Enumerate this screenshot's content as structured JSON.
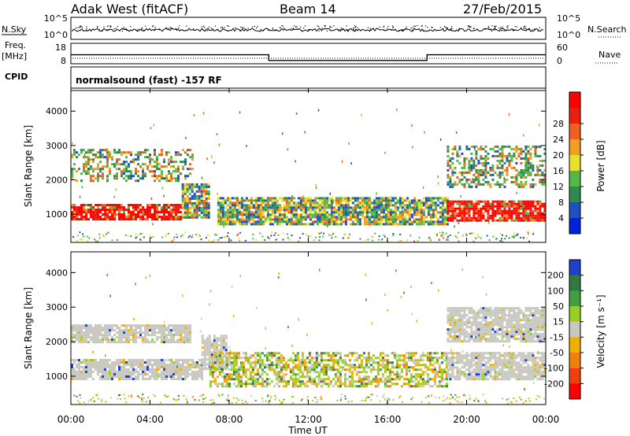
{
  "header": {
    "station": "Adak West (fitACF)",
    "beam": "Beam 14",
    "date": "27/Feb/2015"
  },
  "side_labels": {
    "nsky": "N.Sky",
    "freq_top": "Freq.",
    "freq_unit": "[MHz]",
    "cpid": "CPID",
    "nsearch": "N.Search",
    "nave": "Nave"
  },
  "noise_panel": {
    "left_ticks": [
      "10^5",
      "10^0"
    ],
    "right_ticks": [
      "10^5",
      "10^0"
    ]
  },
  "freq_panel": {
    "left_ticks": [
      "18",
      "8"
    ],
    "right_ticks": [
      "60",
      "0"
    ],
    "freq_segments": [
      {
        "t0": 0,
        "t1": 10,
        "value_mhz": 12.4
      },
      {
        "t0": 10,
        "t1": 18,
        "value_mhz": 9.6
      },
      {
        "t0": 18,
        "t1": 24,
        "value_mhz": 12.4
      }
    ]
  },
  "cpid_panel": {
    "label": "normalsound (fast) -157 RF"
  },
  "x_axis": {
    "ticks": [
      "00:00",
      "04:00",
      "08:00",
      "12:00",
      "16:00",
      "20:00",
      "00:00"
    ],
    "label": "Time UT"
  },
  "colors": {
    "power_scale": [
      "#0022dd",
      "#2050c0",
      "#2e8a50",
      "#52b848",
      "#e8e030",
      "#f0a020",
      "#f06020",
      "#e82010",
      "#ff0000"
    ],
    "velocity_scale": [
      "#2040c8",
      "#2e7a40",
      "#40a040",
      "#98d020",
      "#c8c8c0",
      "#f0b000",
      "#f08010",
      "#f04010",
      "#ff0000"
    ],
    "ground_scatter": "#c8c8c0"
  },
  "chart_data": [
    {
      "type": "heatmap",
      "name": "power",
      "ylabel": "Slant Range [km]",
      "ylim": [
        180,
        4600
      ],
      "yticks": [
        "1000",
        "2000",
        "3000",
        "4000"
      ],
      "xlim_hours": [
        0,
        24
      ],
      "colorbar": {
        "label": "Power [dB]",
        "ticks": [
          "4",
          "8",
          "12",
          "16",
          "20",
          "24",
          "28"
        ]
      },
      "features": [
        {
          "t0": 0.0,
          "t1": 5.6,
          "range_km": [
            850,
            1300
          ],
          "level": "strong"
        },
        {
          "t0": 5.6,
          "t1": 7.0,
          "range_km": [
            900,
            1900
          ],
          "level": "medium"
        },
        {
          "t0": 0.0,
          "t1": 6.2,
          "range_km": [
            2000,
            2900
          ],
          "level": "weak"
        },
        {
          "t0": 7.4,
          "t1": 19.0,
          "range_km": [
            700,
            1500
          ],
          "level": "medium"
        },
        {
          "t0": 19.0,
          "t1": 24.0,
          "range_km": [
            850,
            1400
          ],
          "level": "strong"
        },
        {
          "t0": 19.0,
          "t1": 24.0,
          "range_km": [
            1800,
            3000
          ],
          "level": "weak"
        }
      ]
    },
    {
      "type": "heatmap",
      "name": "velocity",
      "ylabel": "Slant Range [km]",
      "ylim": [
        180,
        4600
      ],
      "yticks": [
        "1000",
        "2000",
        "3000",
        "4000"
      ],
      "xlim_hours": [
        0,
        24
      ],
      "colorbar": {
        "label": "Velocity [m s⁻¹]",
        "ticks": [
          "200",
          "100",
          "50",
          "15",
          "-15",
          "-50",
          "-100",
          "-200"
        ]
      },
      "features": [
        {
          "t0": 0.0,
          "t1": 6.6,
          "range_km": [
            900,
            1500
          ],
          "level": "ground_scatter"
        },
        {
          "t0": 6.6,
          "t1": 7.8,
          "range_km": [
            1200,
            2200
          ],
          "level": "ground_scatter"
        },
        {
          "t0": 0.0,
          "t1": 6.0,
          "range_km": [
            2000,
            2500
          ],
          "level": "ground_scatter"
        },
        {
          "t0": 7.0,
          "t1": 19.0,
          "range_km": [
            700,
            1700
          ],
          "level": "mixed"
        },
        {
          "t0": 19.0,
          "t1": 24.0,
          "range_km": [
            900,
            1700
          ],
          "level": "ground_scatter"
        },
        {
          "t0": 19.0,
          "t1": 24.0,
          "range_km": [
            2000,
            3000
          ],
          "level": "ground_scatter"
        }
      ]
    }
  ]
}
